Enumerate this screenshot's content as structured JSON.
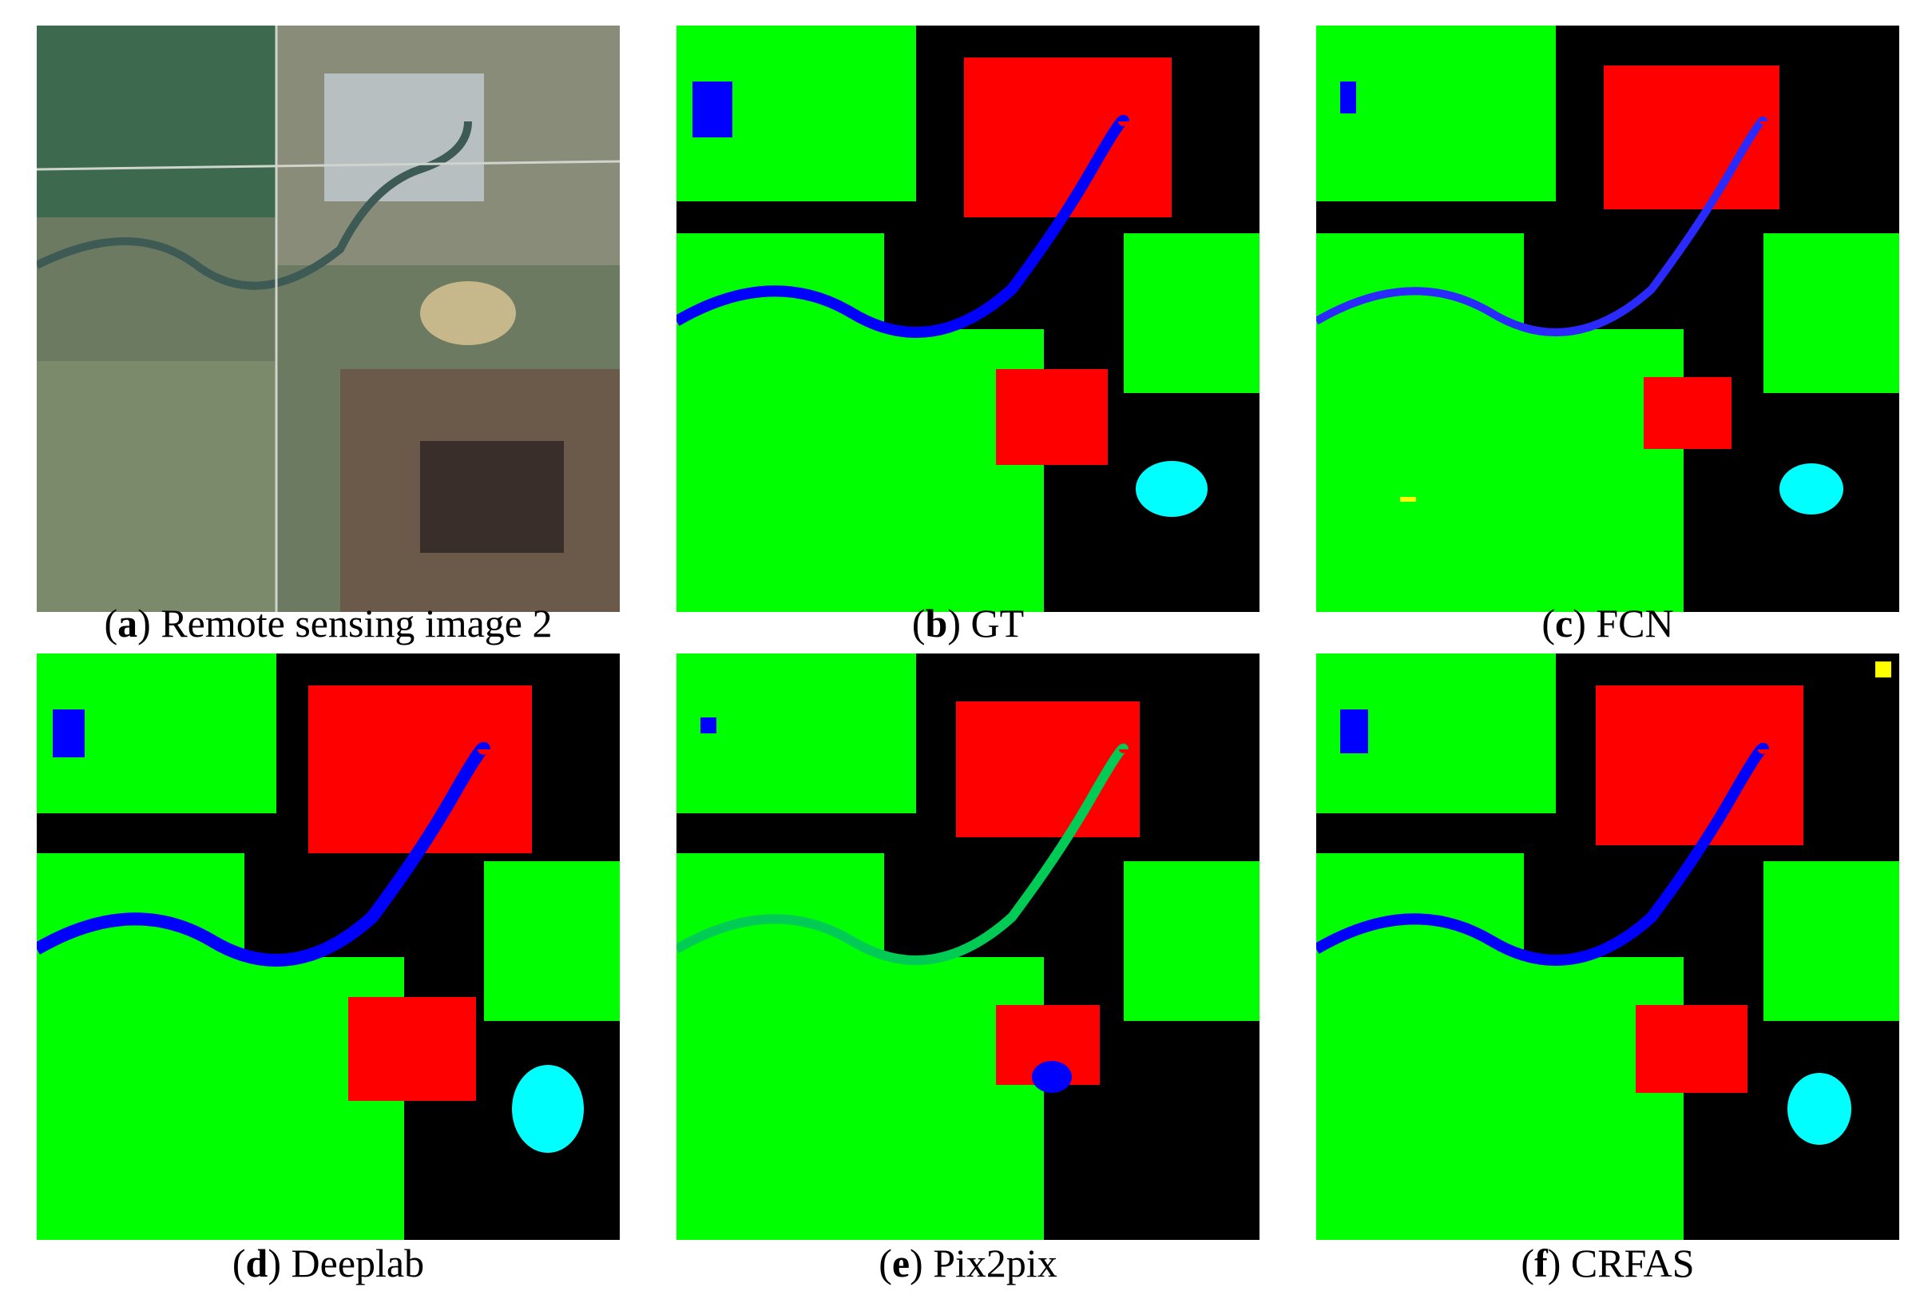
{
  "figure": {
    "panels": [
      {
        "letter": "a",
        "label": "Remote sensing image 2",
        "kind": "satellite"
      },
      {
        "letter": "b",
        "label": "GT",
        "kind": "classmap"
      },
      {
        "letter": "c",
        "label": "FCN",
        "kind": "classmap"
      },
      {
        "letter": "d",
        "label": "Deeplab",
        "kind": "classmap"
      },
      {
        "letter": "e",
        "label": "Pix2pix",
        "kind": "classmap"
      },
      {
        "letter": "f",
        "label": "CRFAS",
        "kind": "classmap"
      }
    ],
    "class_colors": {
      "vegetation": "#00ff00",
      "built_up": "#ff0000",
      "water": "#0000ff",
      "lake": "#00ffff",
      "background": "#000000",
      "other": "#ffff00"
    }
  }
}
